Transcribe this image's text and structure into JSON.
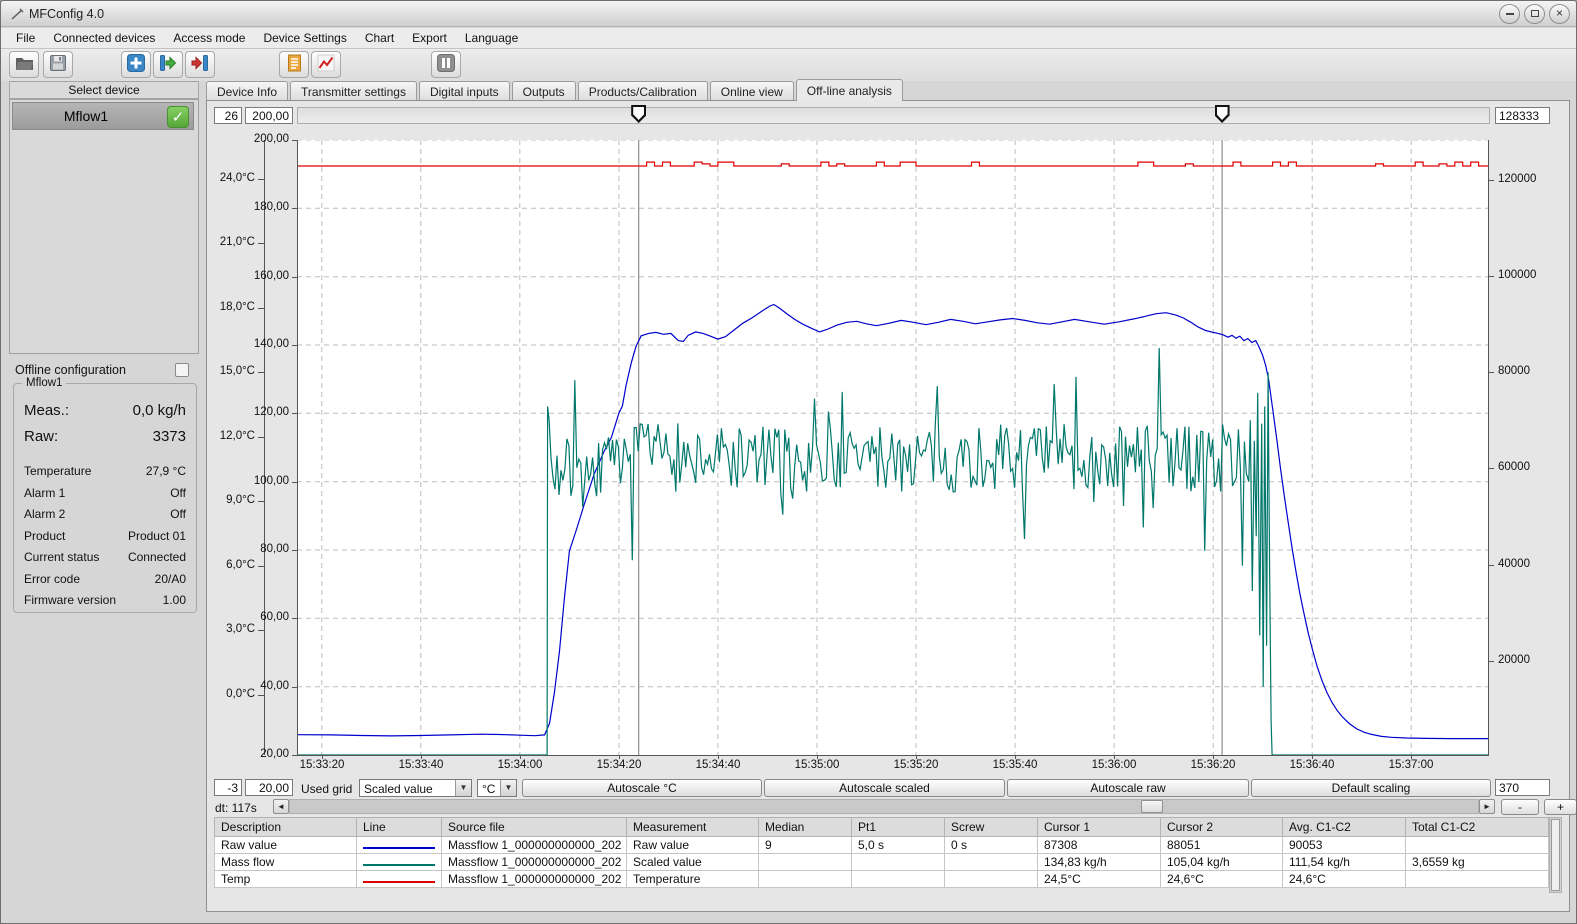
{
  "window": {
    "title": "MFConfig 4.0"
  },
  "icons": {
    "scroll-left": "◄",
    "scroll-right": "►",
    "check": "✓",
    "close": "×",
    "dropdown": "▼"
  },
  "menu_items": [
    "File",
    "Connected devices",
    "Access mode",
    "Device Settings",
    "Chart",
    "Export",
    "Language"
  ],
  "toolbar": {
    "buttons": [
      "open-file",
      "save-file",
      "add-device",
      "export-device",
      "import-device",
      "log-document",
      "line-chart",
      "pause"
    ]
  },
  "sidebar": {
    "select_device_label": "Select device",
    "devices": [
      {
        "name": "Mflow1",
        "checked": true
      }
    ],
    "offline_configuration_label": "Offline configuration",
    "group_title": "Mflow1",
    "meas_label": "Meas.:",
    "meas_value": "0,0 kg/h",
    "raw_label": "Raw:",
    "raw_value": "3373",
    "info_rows": [
      {
        "label": "Temperature",
        "value": "27,9 °C"
      },
      {
        "label": "Alarm 1",
        "value": "Off"
      },
      {
        "label": "Alarm 2",
        "value": "Off"
      },
      {
        "label": "Product",
        "value": "Product 01"
      },
      {
        "label": "Current status",
        "value": "Connected"
      },
      {
        "label": "Error code",
        "value": "20/A0"
      },
      {
        "label": "Firmware version",
        "value": "1.00"
      }
    ]
  },
  "tabs": {
    "items": [
      "Device Info",
      "Transmitter settings",
      "Digital inputs",
      "Outputs",
      "Products/Calibration",
      "Online view",
      "Off-line analysis"
    ],
    "active_index": 6
  },
  "analysis": {
    "top_fields": {
      "grid_count": "26",
      "scaled_max": "200,00",
      "raw_max": "128333"
    },
    "bottom_fields": {
      "grid_offset": "-3",
      "scaled_min": "20,00",
      "raw_min": "370"
    },
    "used_grid_label": "Used grid",
    "grid_source_value": "Scaled value",
    "unit_value": "°C",
    "autoscale_buttons": [
      "Autoscale °C",
      "Autoscale scaled",
      "Autoscale raw",
      "Default scaling"
    ],
    "dt_label": "dt: 117s",
    "zoom_out_label": "-",
    "zoom_in_label": "+",
    "table": {
      "columns": [
        "Description",
        "Line",
        "Source file",
        "Measurement",
        "Median",
        "Pt1",
        "Screw",
        "Cursor 1",
        "Cursor 2",
        "Avg. C1-C2",
        "Total C1-C2"
      ],
      "rows": [
        {
          "description": "Raw value",
          "line_color": "#0000cc",
          "source_file": "Massflow 1_000000000000_202",
          "measurement": "Raw value",
          "median": "9",
          "pt1": "5,0 s",
          "screw": "0 s",
          "cursor1": "87308",
          "cursor2": "88051",
          "avg": "90053",
          "total": ""
        },
        {
          "description": "Mass flow",
          "line_color": "#00776b",
          "source_file": "Massflow 1_000000000000_202",
          "measurement": "Scaled value",
          "median": "",
          "pt1": "",
          "screw": "",
          "cursor1": "134,83 kg/h",
          "cursor2": "105,04 kg/h",
          "avg": "111,54 kg/h",
          "total": "3,6559 kg"
        },
        {
          "description": "Temp",
          "line_color": "#dd0000",
          "source_file": "Massflow 1_000000000000_202",
          "measurement": "Temperature",
          "median": "",
          "pt1": "",
          "screw": "",
          "cursor1": "24,5°C",
          "cursor2": "24,6°C",
          "avg": "24,6°C",
          "total": ""
        }
      ]
    }
  },
  "chart_data": {
    "type": "line",
    "title": "",
    "x_domain_seconds": [
      -5,
      235.5
    ],
    "x_ticks": [
      {
        "t": 0,
        "label": "15:33:20"
      },
      {
        "t": 20,
        "label": "15:33:40"
      },
      {
        "t": 40,
        "label": "15:34:00"
      },
      {
        "t": 60,
        "label": "15:34:20"
      },
      {
        "t": 80,
        "label": "15:34:40"
      },
      {
        "t": 100,
        "label": "15:35:00"
      },
      {
        "t": 120,
        "label": "15:35:20"
      },
      {
        "t": 140,
        "label": "15:35:40"
      },
      {
        "t": 160,
        "label": "15:36:00"
      },
      {
        "t": 180,
        "label": "15:36:20"
      },
      {
        "t": 200,
        "label": "15:36:40"
      },
      {
        "t": 220,
        "label": "15:37:00"
      }
    ],
    "axes": {
      "temp": {
        "side": "far-left",
        "unit": "°C",
        "tick_values": [
          0,
          3,
          6,
          9,
          12,
          15,
          18,
          21,
          24
        ],
        "range_at_plot_edges": [
          -2.79,
          25.81
        ]
      },
      "scaled": {
        "side": "left",
        "tick_values": [
          20,
          40,
          60,
          80,
          100,
          120,
          140,
          160,
          180,
          200
        ],
        "range": [
          20,
          200
        ]
      },
      "raw": {
        "side": "right",
        "tick_values": [
          20000,
          40000,
          60000,
          80000,
          100000,
          120000
        ],
        "range": [
          370,
          128333
        ]
      }
    },
    "grid": {
      "show": true,
      "dash": [
        5,
        4
      ],
      "color": "#bdbdbd"
    },
    "cursors": {
      "cursor1_t": 64,
      "cursor2_t": 181.8,
      "color": "#8f8f8f"
    },
    "series": [
      {
        "name": "Raw value",
        "axis": "raw",
        "color": "#0000cc",
        "points": [
          [
            -5,
            4600
          ],
          [
            2,
            4550
          ],
          [
            8,
            4420
          ],
          [
            14,
            4350
          ],
          [
            20,
            4420
          ],
          [
            26,
            4560
          ],
          [
            32,
            4700
          ],
          [
            36,
            4640
          ],
          [
            40,
            4480
          ],
          [
            43,
            4380
          ],
          [
            45,
            4550
          ],
          [
            46,
            7000
          ],
          [
            47,
            13500
          ],
          [
            48,
            22000
          ],
          [
            49,
            33000
          ],
          [
            50,
            42800
          ],
          [
            51.5,
            47500
          ],
          [
            53,
            52500
          ],
          [
            55,
            58800
          ],
          [
            57,
            63500
          ],
          [
            58.5,
            66500
          ],
          [
            60,
            71500
          ],
          [
            60.7,
            73000
          ],
          [
            61.5,
            77500
          ],
          [
            62.5,
            82000
          ],
          [
            63.5,
            85500
          ],
          [
            64.5,
            87600
          ],
          [
            66,
            88100
          ],
          [
            67.5,
            88300
          ],
          [
            69,
            87900
          ],
          [
            70.5,
            88100
          ],
          [
            72,
            86600
          ],
          [
            73,
            86400
          ],
          [
            74,
            87700
          ],
          [
            75.5,
            88400
          ],
          [
            77,
            88100
          ],
          [
            78.5,
            87500
          ],
          [
            80,
            86900
          ],
          [
            81.5,
            87400
          ],
          [
            83,
            88600
          ],
          [
            85,
            90200
          ],
          [
            87,
            91400
          ],
          [
            89,
            92800
          ],
          [
            90.5,
            93800
          ],
          [
            91.3,
            94100
          ],
          [
            92.5,
            93300
          ],
          [
            94,
            92100
          ],
          [
            95.5,
            91000
          ],
          [
            97,
            90100
          ],
          [
            99,
            89100
          ],
          [
            100.5,
            88400
          ],
          [
            102,
            88900
          ],
          [
            104,
            89800
          ],
          [
            106,
            90400
          ],
          [
            108,
            90600
          ],
          [
            110,
            90100
          ],
          [
            112,
            89700
          ],
          [
            114.5,
            90200
          ],
          [
            117,
            90800
          ],
          [
            119.5,
            90400
          ],
          [
            122,
            89900
          ],
          [
            124.5,
            90400
          ],
          [
            127,
            91000
          ],
          [
            129.5,
            90600
          ],
          [
            132,
            90100
          ],
          [
            134.5,
            90500
          ],
          [
            137,
            90900
          ],
          [
            139.5,
            91200
          ],
          [
            142,
            90800
          ],
          [
            144.5,
            90300
          ],
          [
            147,
            90000
          ],
          [
            149.5,
            90500
          ],
          [
            152,
            91000
          ],
          [
            155,
            90500
          ],
          [
            158,
            90000
          ],
          [
            161,
            90500
          ],
          [
            164,
            91100
          ],
          [
            166.5,
            91700
          ],
          [
            168.5,
            92200
          ],
          [
            170.5,
            92400
          ],
          [
            172.5,
            91900
          ],
          [
            174,
            91300
          ],
          [
            175.5,
            90400
          ],
          [
            177,
            89400
          ],
          [
            178.5,
            88700
          ],
          [
            180,
            88300
          ],
          [
            181,
            88100
          ],
          [
            182,
            87800
          ],
          [
            183,
            87300
          ],
          [
            183.8,
            87700
          ],
          [
            184.6,
            87100
          ],
          [
            185.4,
            87500
          ],
          [
            186.2,
            86600
          ],
          [
            187,
            87000
          ],
          [
            187.8,
            86200
          ],
          [
            188.6,
            86600
          ],
          [
            189.3,
            85200
          ],
          [
            190,
            83500
          ],
          [
            190.6,
            81500
          ],
          [
            191.2,
            78500
          ],
          [
            192,
            72500
          ],
          [
            192.8,
            66500
          ],
          [
            193.6,
            60000
          ],
          [
            194.4,
            54000
          ],
          [
            195.2,
            48500
          ],
          [
            196,
            43000
          ],
          [
            196.8,
            38000
          ],
          [
            197.6,
            33500
          ],
          [
            198.4,
            29500
          ],
          [
            199.2,
            25800
          ],
          [
            200,
            22500
          ],
          [
            201,
            18800
          ],
          [
            202,
            15800
          ],
          [
            203,
            13300
          ],
          [
            204,
            11300
          ],
          [
            205,
            9700
          ],
          [
            206,
            8400
          ],
          [
            207.5,
            6900
          ],
          [
            209,
            5800
          ],
          [
            210.5,
            5100
          ],
          [
            212,
            4650
          ],
          [
            214,
            4250
          ],
          [
            216,
            4050
          ],
          [
            219,
            3900
          ],
          [
            223,
            3820
          ],
          [
            228,
            3780
          ],
          [
            235.5,
            3780
          ]
        ]
      },
      {
        "name": "Mass flow",
        "axis": "scaled",
        "color": "#00776b",
        "baseline": 20,
        "flat_until": 45.5,
        "jump_to": 122,
        "noise": {
          "from": 45.9,
          "to": 187,
          "step": 0.4,
          "base_early": 103,
          "base_late": 107,
          "base_switch": 62,
          "amplitude": 10,
          "spike_chance": 0.12,
          "spike_extra": 26,
          "min": 62,
          "max": 146,
          "seed": 7
        },
        "end_points": [
          [
            187.2,
            100
          ],
          [
            187.5,
            118
          ],
          [
            187.9,
            68
          ],
          [
            188.3,
            112
          ],
          [
            188.7,
            84
          ],
          [
            189,
            126
          ],
          [
            189.4,
            55
          ],
          [
            189.8,
            117
          ],
          [
            190.1,
            40
          ],
          [
            190.4,
            122
          ],
          [
            190.8,
            52
          ],
          [
            191.1,
            132
          ],
          [
            191.4,
            75
          ],
          [
            191.7,
            30
          ],
          [
            191.9,
            20
          ]
        ],
        "flat_after": 191.9
      },
      {
        "name": "Temp",
        "axis": "temp",
        "color": "#dd0000",
        "base": 24.6,
        "noise": {
          "from": 64,
          "to": 235.5,
          "step": 1.6,
          "bump": 0.18,
          "bump_chance": 0.2,
          "seed": 3
        }
      }
    ]
  }
}
